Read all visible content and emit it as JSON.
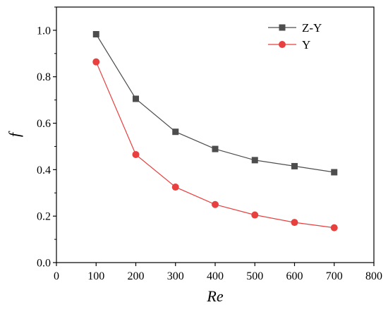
{
  "chart_data": {
    "type": "line",
    "title": "",
    "xlabel": "Re",
    "ylabel": "f",
    "xlim": [
      0,
      800
    ],
    "ylim": [
      0.0,
      1.1
    ],
    "xticks": [
      0,
      100,
      200,
      300,
      400,
      500,
      600,
      700,
      800
    ],
    "yticks": [
      0.0,
      0.2,
      0.4,
      0.6,
      0.8,
      1.0
    ],
    "xtick_labels": [
      "0",
      "100",
      "200",
      "300",
      "400",
      "500",
      "600",
      "700",
      "800"
    ],
    "ytick_labels": [
      "0.0",
      "0.2",
      "0.4",
      "0.6",
      "0.8",
      "1.0"
    ],
    "grid": false,
    "legend_position": "top-right",
    "x": [
      100,
      200,
      300,
      400,
      500,
      600,
      700
    ],
    "series": [
      {
        "name": "Z-Y",
        "values": [
          0.983,
          0.705,
          0.563,
          0.489,
          0.441,
          0.415,
          0.389
        ],
        "color": "#4d4d4d",
        "marker": "square"
      },
      {
        "name": "Y",
        "values": [
          0.864,
          0.465,
          0.325,
          0.25,
          0.205,
          0.173,
          0.15
        ],
        "color": "#e8403f",
        "marker": "circle"
      }
    ]
  }
}
